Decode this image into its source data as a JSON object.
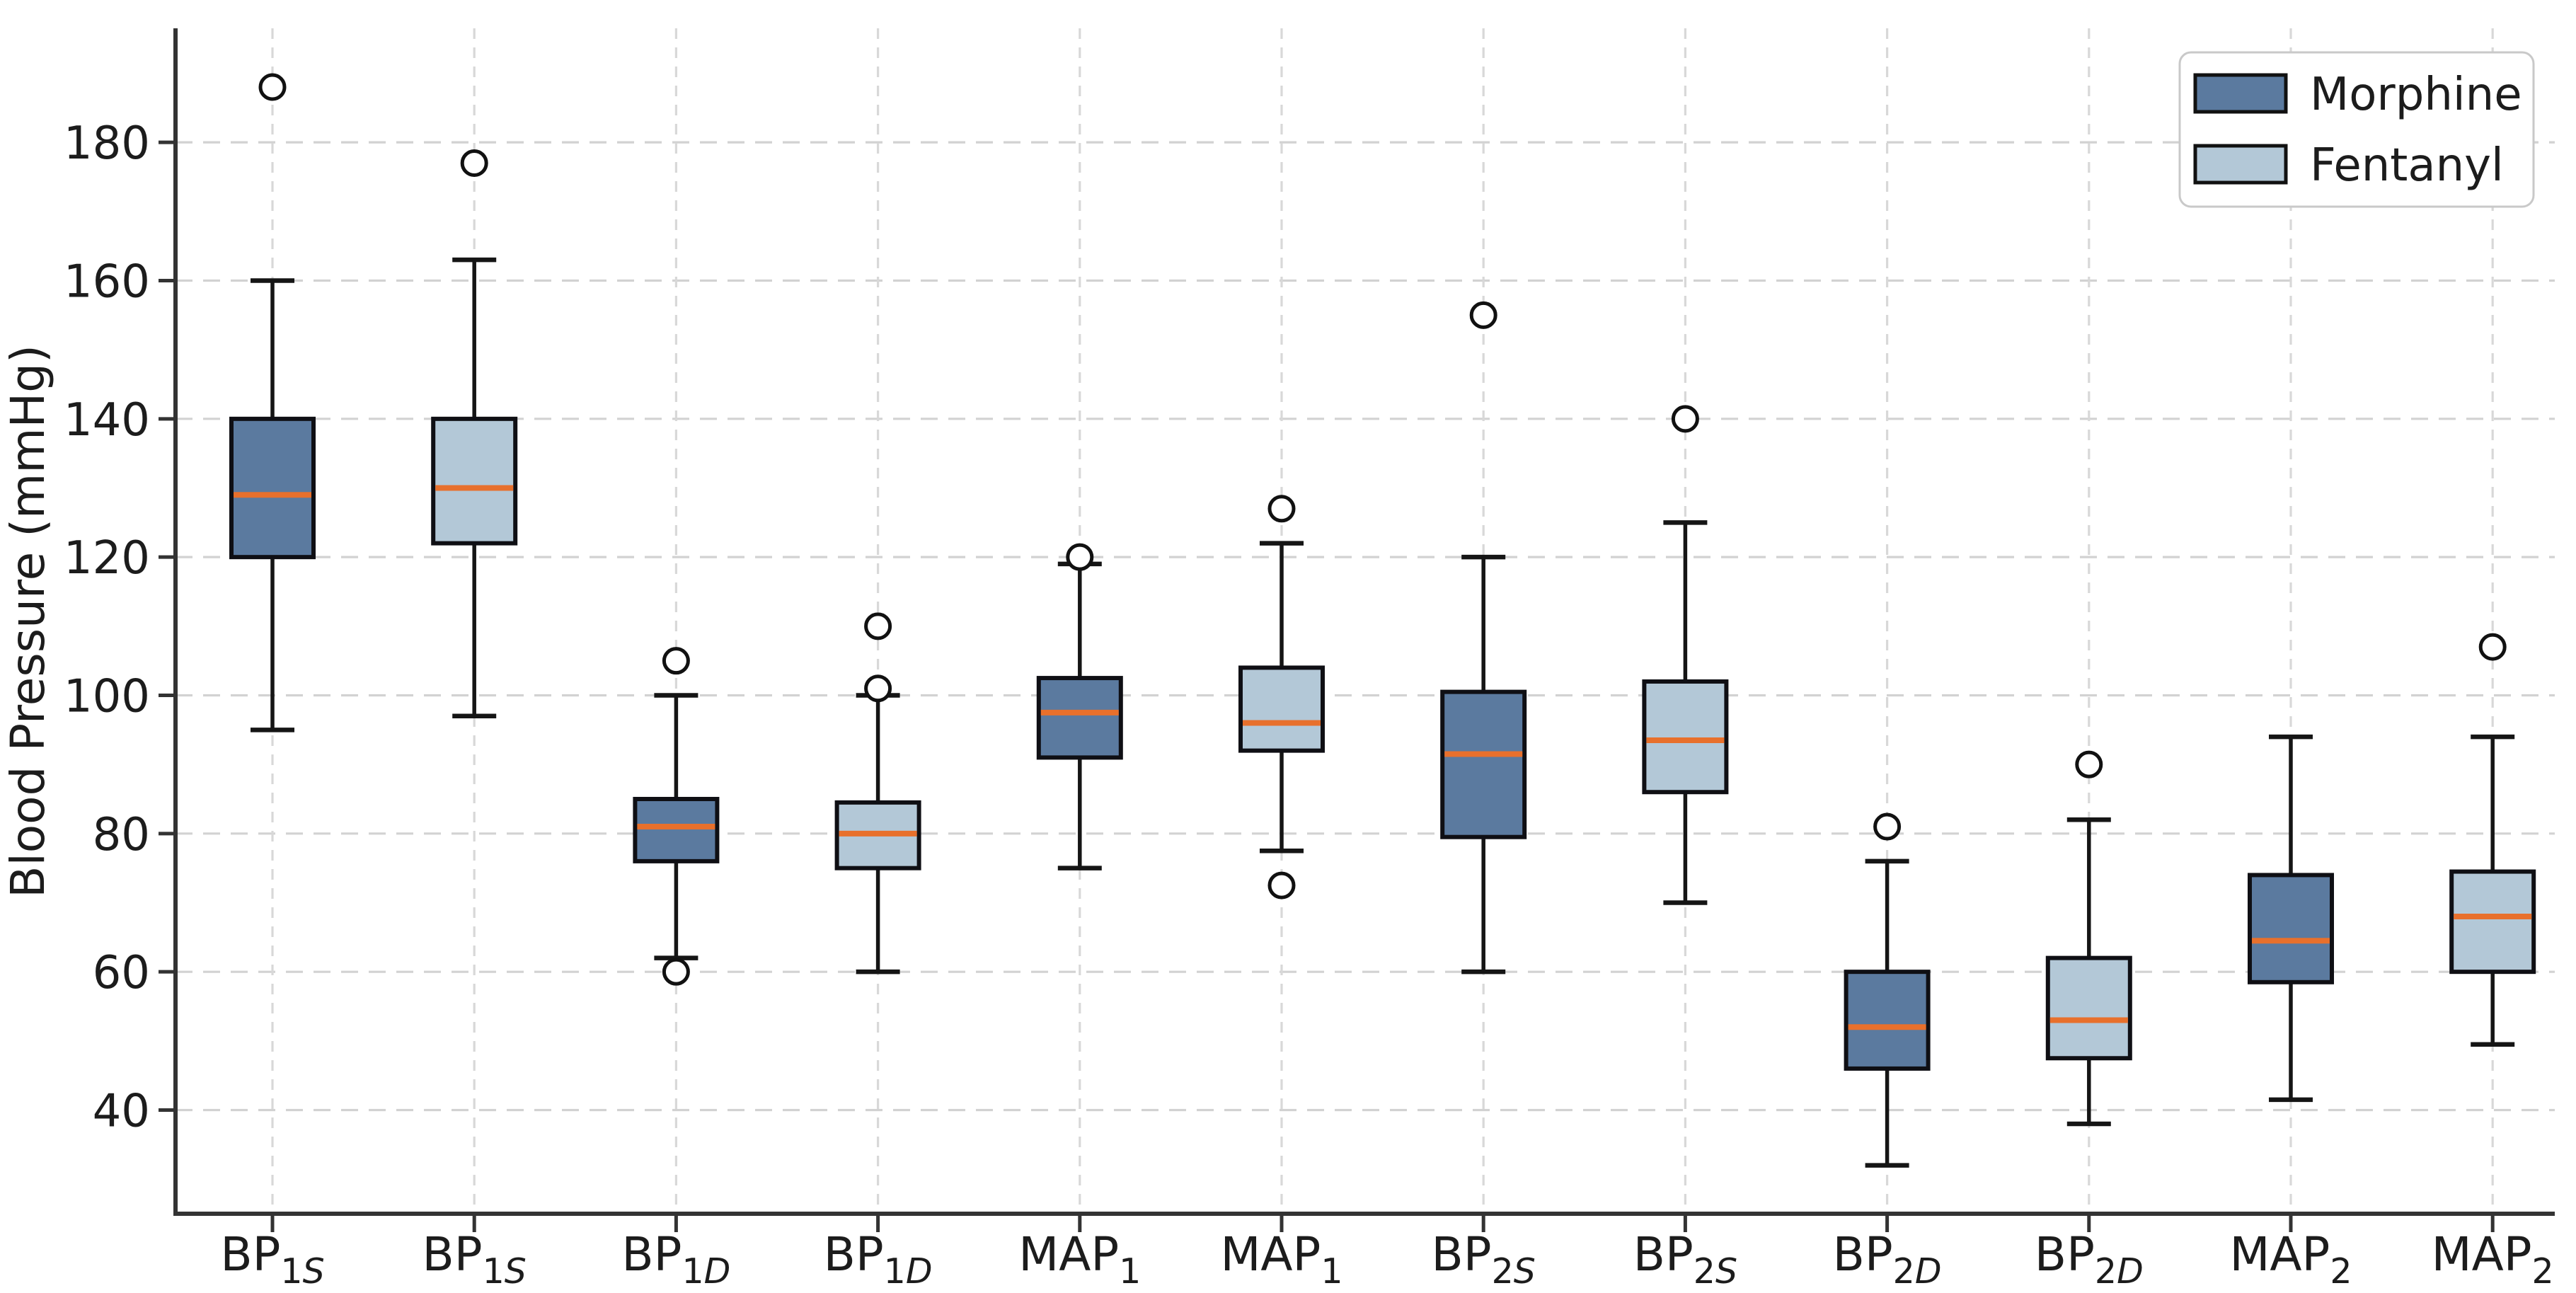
{
  "figure": {
    "background": "#ffffff",
    "ylabel": "Blood Pressure (mmHg)"
  },
  "chart_data": {
    "type": "boxplot",
    "title": "",
    "xlabel": "",
    "ylabel": "Blood Pressure (mmHg)",
    "ylim": [
      25,
      196.5
    ],
    "yticks": [
      40,
      60,
      80,
      100,
      120,
      140,
      160,
      180
    ],
    "grid": true,
    "median_color": "#e8702c",
    "legend": {
      "position": "upper right",
      "entries": [
        {
          "label": "Morphine",
          "color": "#5b7a9f"
        },
        {
          "label": "Fentanyl",
          "color": "#b3c8d7"
        }
      ]
    },
    "boxes": [
      {
        "label": {
          "base": "BP",
          "sub": "1S"
        },
        "series": "Morphine",
        "whislo": 95,
        "q1": 120,
        "med": 129,
        "q3": 140,
        "whishi": 160,
        "fliers": [
          188
        ]
      },
      {
        "label": {
          "base": "BP",
          "sub": "1S"
        },
        "series": "Fentanyl",
        "whislo": 97,
        "q1": 122,
        "med": 130,
        "q3": 140,
        "whishi": 163,
        "fliers": [
          177
        ]
      },
      {
        "label": {
          "base": "BP",
          "sub": "1D"
        },
        "series": "Morphine",
        "whislo": 62,
        "q1": 76,
        "med": 81,
        "q3": 85,
        "whishi": 100,
        "fliers": [
          105,
          60
        ]
      },
      {
        "label": {
          "base": "BP",
          "sub": "1D"
        },
        "series": "Fentanyl",
        "whislo": 60,
        "q1": 75,
        "med": 80,
        "q3": 84.5,
        "whishi": 100,
        "fliers": [
          110,
          101
        ]
      },
      {
        "label": {
          "base": "MAP",
          "sub": "1"
        },
        "series": "Morphine",
        "whislo": 75,
        "q1": 91,
        "med": 97.5,
        "q3": 102.5,
        "whishi": 119,
        "fliers": [
          120
        ]
      },
      {
        "label": {
          "base": "MAP",
          "sub": "1"
        },
        "series": "Fentanyl",
        "whislo": 77.5,
        "q1": 92,
        "med": 96,
        "q3": 104,
        "whishi": 122,
        "fliers": [
          127,
          72.5
        ]
      },
      {
        "label": {
          "base": "BP",
          "sub": "2S"
        },
        "series": "Morphine",
        "whislo": 60,
        "q1": 79.5,
        "med": 91.5,
        "q3": 100.5,
        "whishi": 120,
        "fliers": [
          155
        ]
      },
      {
        "label": {
          "base": "BP",
          "sub": "2S"
        },
        "series": "Fentanyl",
        "whislo": 70,
        "q1": 86,
        "med": 93.5,
        "q3": 102,
        "whishi": 125,
        "fliers": [
          140
        ]
      },
      {
        "label": {
          "base": "BP",
          "sub": "2D"
        },
        "series": "Morphine",
        "whislo": 32,
        "q1": 46,
        "med": 52,
        "q3": 60,
        "whishi": 76,
        "fliers": [
          81
        ]
      },
      {
        "label": {
          "base": "BP",
          "sub": "2D"
        },
        "series": "Fentanyl",
        "whislo": 38,
        "q1": 47.5,
        "med": 53,
        "q3": 62,
        "whishi": 82,
        "fliers": [
          90
        ]
      },
      {
        "label": {
          "base": "MAP",
          "sub": "2"
        },
        "series": "Morphine",
        "whislo": 41.5,
        "q1": 58.5,
        "med": 64.5,
        "q3": 74,
        "whishi": 94,
        "fliers": []
      },
      {
        "label": {
          "base": "MAP",
          "sub": "2"
        },
        "series": "Fentanyl",
        "whislo": 49.5,
        "q1": 60,
        "med": 68,
        "q3": 74.5,
        "whishi": 94,
        "fliers": [
          107
        ]
      }
    ]
  }
}
